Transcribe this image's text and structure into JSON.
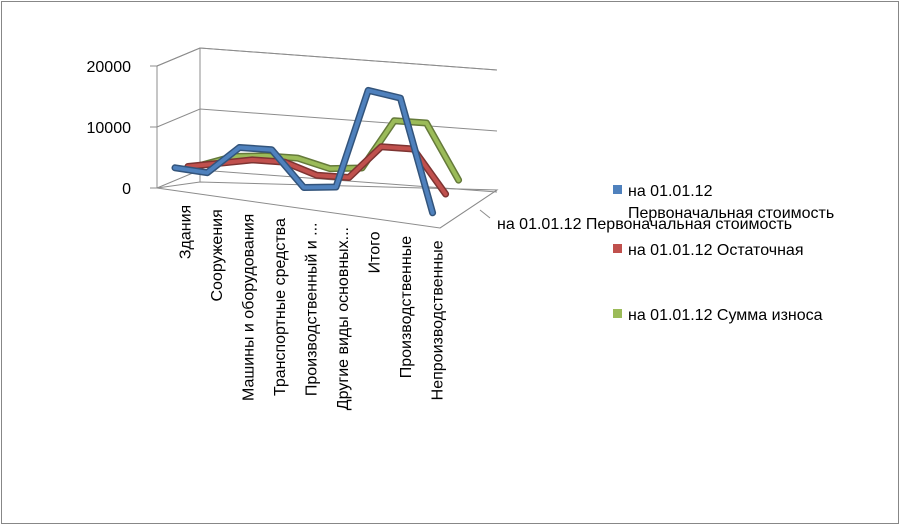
{
  "chart_data": {
    "type": "line",
    "style": "3d",
    "categories": [
      "Здания",
      "Сооружения",
      "Машины и оборудования",
      "Транспортные средства",
      "Производственный и ...",
      "Другие виды основных...",
      "Итого",
      "Производственные",
      "Непроизводственные"
    ],
    "series": [
      {
        "name": "на 01.01.12 Первоначальная стоимость",
        "color": "#4F81BD",
        "values": [
          1500,
          1000,
          6000,
          6000,
          -500,
          0,
          18000,
          17000,
          -3500
        ]
      },
      {
        "name": "на 01.01.12 Остаточная",
        "color": "#C0504D",
        "values": [
          1000,
          2000,
          3000,
          3000,
          1000,
          1000,
          7000,
          7000,
          -800
        ]
      },
      {
        "name": "на 01.01.12 Сумма износа",
        "color": "#9BBB59",
        "values": [
          500,
          2500,
          3000,
          3000,
          1500,
          2000,
          11000,
          11000,
          1000
        ]
      }
    ],
    "y_ticks": [
      "0",
      "10000",
      "20000"
    ],
    "ylim": [
      0,
      20000
    ],
    "depth_label": "на 01.01.12 Первоначальная стоимость",
    "grid": true,
    "legend_position": "right"
  }
}
